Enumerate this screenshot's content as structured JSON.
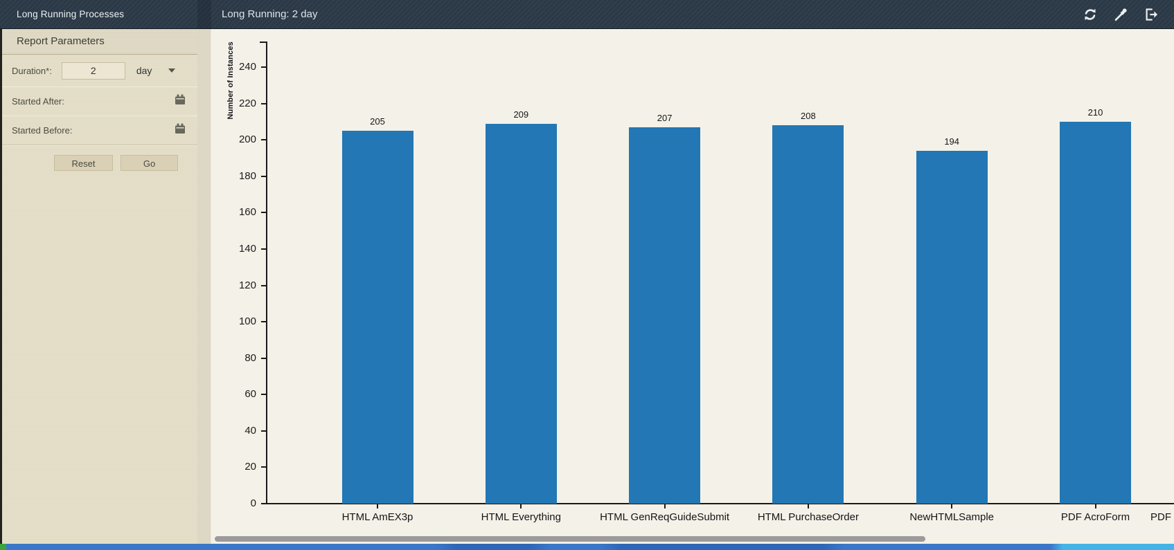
{
  "titlebar": {
    "sidebar_title": "Long Running Processes",
    "main_title": "Long Running: 2 day",
    "icons": [
      "refresh-icon",
      "eyedropper-icon",
      "logout-icon"
    ]
  },
  "sidebar": {
    "title": "Report Parameters",
    "duration": {
      "label": "Duration*:",
      "value": "2",
      "unit": "day"
    },
    "started_after": {
      "label": "Started After:",
      "value": ""
    },
    "started_before": {
      "label": "Started Before:",
      "value": ""
    },
    "buttons": {
      "reset": "Reset",
      "go": "Go"
    }
  },
  "chart_data": {
    "type": "bar",
    "title": "",
    "xlabel": "",
    "ylabel": "Number of Instances",
    "categories": [
      "HTML AmEX3p",
      "HTML Everything",
      "HTML GenReqGuideSubmit",
      "HTML PurchaseOrder",
      "NewHTMLSample",
      "PDF AcroForm",
      "PDF"
    ],
    "values": [
      205,
      209,
      207,
      208,
      194,
      210,
      null
    ],
    "ylim": [
      0,
      240
    ],
    "ytick_step": 20,
    "grid": false,
    "legend_position": "none",
    "bar_color": "#2277b4",
    "note": "Seventh category label 'PDF' is clipped at the right edge; its bar is scrolled out of view."
  }
}
